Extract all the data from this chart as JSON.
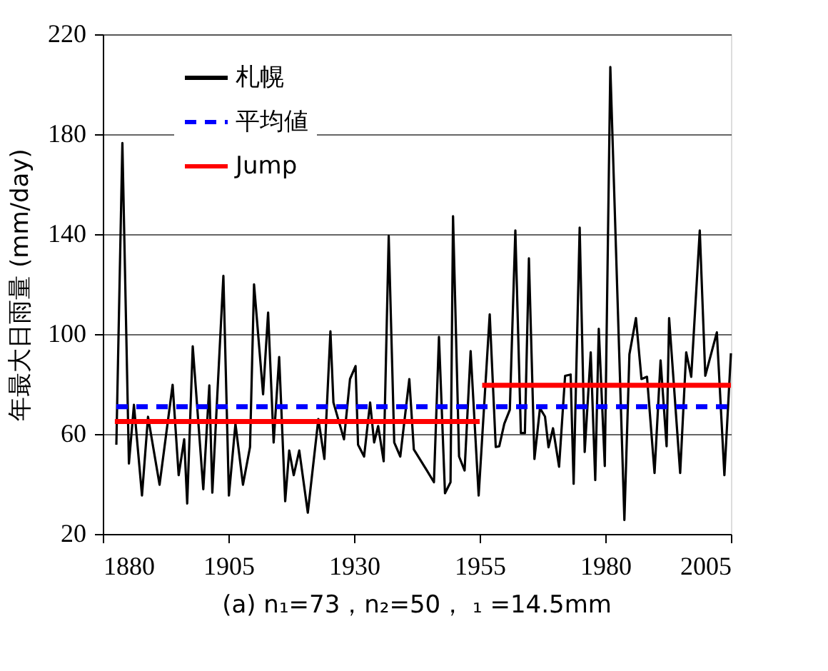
{
  "chart_data": {
    "type": "line",
    "ylabel": "年最大日雨量 (mm/day)",
    "annotations": [
      "(a)  n₁=73，n₂=50，   ₁ =14.5mm"
    ],
    "xlim": [
      1880,
      2005
    ],
    "xticks": [
      1880,
      1905,
      1930,
      1955,
      1980,
      2005
    ],
    "ylim": [
      20,
      220
    ],
    "yticks": [
      20,
      60,
      100,
      140,
      180,
      220
    ],
    "grid": "y",
    "legend": "top left",
    "marker": "none",
    "series": [
      {
        "name": "札幌",
        "color": "#000000",
        "line_style": "solid",
        "x": [
          1882.7,
          1883.9,
          1885.2,
          1886.2,
          1887.8,
          1889,
          1891.3,
          1893.9,
          1895.1,
          1896.2,
          1896.8,
          1897.9,
          1900,
          1901.2,
          1901.8,
          1904,
          1905.1,
          1906.4,
          1907.9,
          1909.3,
          1910.1,
          1911.9,
          1912.9,
          1914,
          1915.1,
          1916.3,
          1917.1,
          1918,
          1919.1,
          1920.8,
          1922.9,
          1924.1,
          1925.3,
          1925.9,
          1928,
          1929.2,
          1930.3,
          1930.8,
          1932,
          1933.2,
          1934,
          1934.8,
          1935.9,
          1936.9,
          1938,
          1939.2,
          1941,
          1941.9,
          1944.5,
          1945.9,
          1946.9,
          1948.1,
          1949.2,
          1949.7,
          1950.9,
          1952,
          1953.2,
          1954.8,
          1957,
          1958.2,
          1958.9,
          1959.9,
          1961,
          1962.1,
          1963.2,
          1964,
          1964.8,
          1965.9,
          1967,
          1968,
          1968.7,
          1969.6,
          1970.8,
          1972,
          1973.1,
          1973.7,
          1974.9,
          1975.9,
          1977.1,
          1978,
          1978.7,
          1979.9,
          1981,
          1983.8,
          1984.8,
          1986.1,
          1987.2,
          1988.3,
          1989.8,
          1991,
          1992.2,
          1992.7,
          1994.9,
          1996.1,
          1997.1,
          1998.8,
          1999.9,
          2002.2,
          2003.7,
          2005
        ],
        "values": [
          55.7,
          176.5,
          48.2,
          71.7,
          35.4,
          66.9,
          39.7,
          79.7,
          43.5,
          57.9,
          32.2,
          95.1,
          37.9,
          79.5,
          36.5,
          123.3,
          35.4,
          64.1,
          39.7,
          54.8,
          119.9,
          75.9,
          108.6,
          56.6,
          90.8,
          33.1,
          53.4,
          43.5,
          53.4,
          28.5,
          66,
          50,
          101.1,
          72.6,
          57.9,
          82,
          87.2,
          55.7,
          51,
          72.6,
          56.6,
          63.2,
          49.1,
          139.3,
          56.6,
          51,
          82,
          53.8,
          45.4,
          40.7,
          98.9,
          36.3,
          40.7,
          147.2,
          51,
          45.4,
          93.2,
          35.4,
          107.9,
          54.8,
          55.1,
          64.1,
          69.7,
          141.5,
          60.4,
          60.4,
          130.3,
          50,
          70.3,
          67,
          54.7,
          62.3,
          46.9,
          83.3,
          83.8,
          40.1,
          142.6,
          52.8,
          92.7,
          41.6,
          102.1,
          47.2,
          206.9,
          25.6,
          91.9,
          106.4,
          82,
          82.9,
          44.4,
          89.5,
          55.1,
          106.4,
          44.4,
          92.7,
          82.9,
          141.5,
          83.3,
          100.7,
          43.5,
          92.3
        ]
      },
      {
        "name": "平均値",
        "color": "#0000ff",
        "line_style": "dashed",
        "x": [
          1882.7,
          2005
        ],
        "values": [
          70.9,
          70.9
        ]
      },
      {
        "name": "Jump",
        "color": "#ff0000",
        "line_style": "solid",
        "x": [
          1882.4,
          1955,
          1955.2,
          1955.5,
          2005
        ],
        "values": [
          65,
          65,
          null,
          79.5,
          79.5
        ]
      }
    ]
  }
}
